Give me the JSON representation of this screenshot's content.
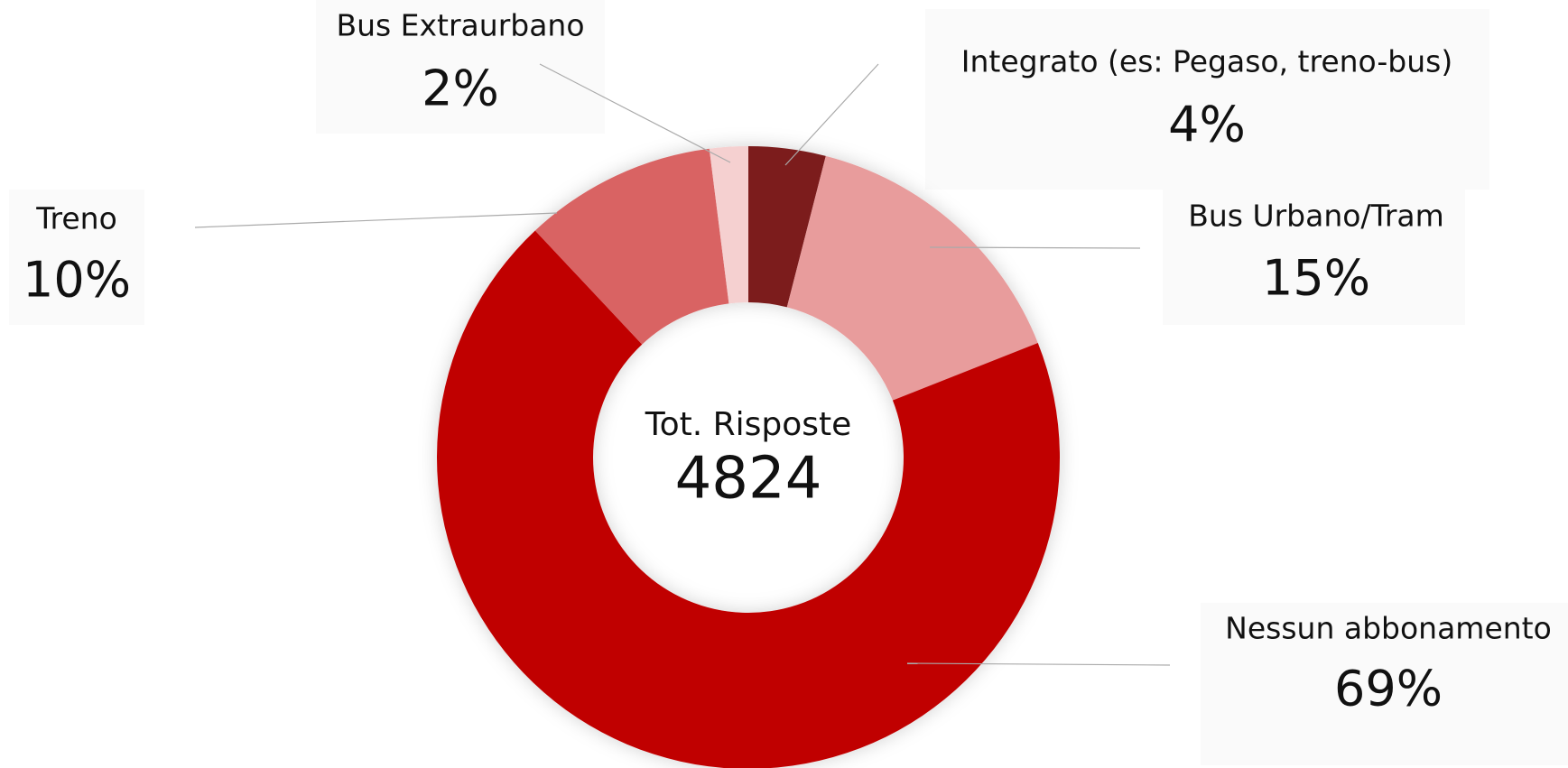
{
  "chart_data": {
    "type": "donut",
    "center_label": "Tot. Risposte",
    "center_value": 4824,
    "categories": [
      "Integrato (es: Pegaso, treno-bus)",
      "Bus Urbano/Tram",
      "Nessun abbonamento",
      "Treno",
      "Bus Extraurbano"
    ],
    "values": [
      4,
      15,
      69,
      10,
      2
    ],
    "value_labels": [
      "4%",
      "15%",
      "69%",
      "10%",
      "2%"
    ],
    "colors": [
      "#7b1e1e",
      "#e89c9c",
      "#c00000",
      "#d96464",
      "#f5d0d0"
    ]
  }
}
